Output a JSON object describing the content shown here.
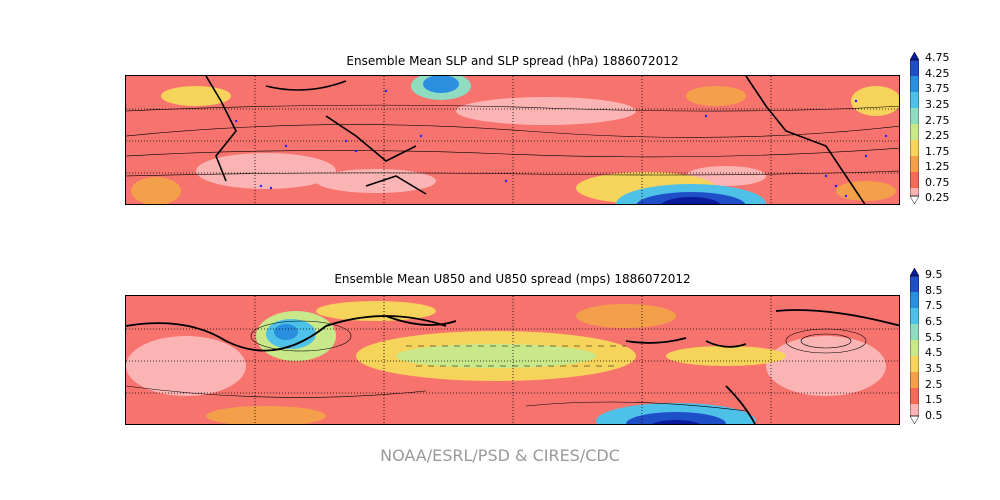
{
  "panels": [
    {
      "title": "Ensemble Mean SLP and SLP spread (hPa) 1886072012",
      "colorbar_ticks": [
        "4.75",
        "4.25",
        "3.75",
        "3.25",
        "2.75",
        "2.25",
        "1.75",
        "1.25",
        "0.75",
        "0.25"
      ]
    },
    {
      "title": "Ensemble Mean U850 and U850 spread (mps) 1886072012",
      "colorbar_ticks": [
        "9.5",
        "8.5",
        "7.5",
        "6.5",
        "5.5",
        "4.5",
        "3.5",
        "2.5",
        "1.5",
        "0.5"
      ]
    }
  ],
  "colorbar_colors": [
    "#fdf0f0",
    "#fbb4b4",
    "#f87e77",
    "#f66a5a",
    "#f4a04a",
    "#f6d35a",
    "#c8e88a",
    "#8fdcc0",
    "#4ec1e8",
    "#2b8fe0",
    "#1f4fc8",
    "#0a1a9c"
  ],
  "credit": "NOAA/ESRL/PSD & CIRES/CDC"
}
